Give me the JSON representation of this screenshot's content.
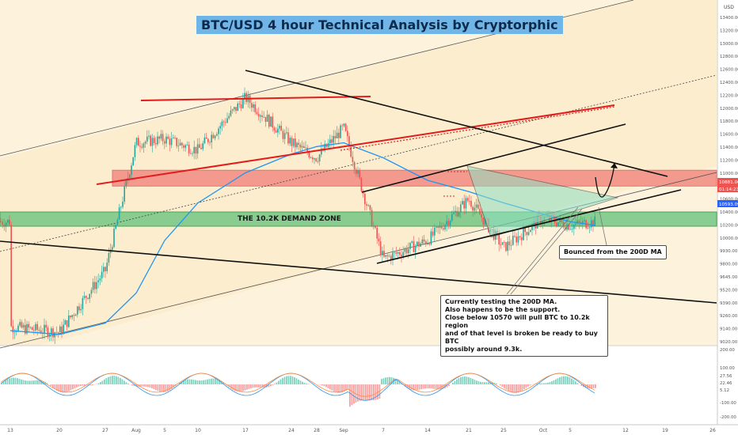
{
  "title": "BTC/USD 4 hour Technical Analysis by Cryptorphic",
  "zones": {
    "demand_label": "THE 10.2K DEMAND ZONE"
  },
  "notes": {
    "main": [
      "Currently testing the 200D MA.",
      "Also happens to be the support.",
      "Close below 10570 will pull BTC to 10.2k region",
      "and of that level is broken be ready to buy BTC",
      "possibly around 9.3k."
    ],
    "bounce": "Bounced from the 200D MA"
  },
  "axis": {
    "currency": "USD",
    "price_ticks": [
      "13400.00",
      "13200.00",
      "13000.00",
      "12800.00",
      "12600.00",
      "12400.00",
      "12200.00",
      "12000.00",
      "11800.00",
      "11600.00",
      "11400.00",
      "11200.00",
      "11000.00",
      "10800.00",
      "10600.00",
      "10400.00",
      "10200.00",
      "10000.00",
      "9930.00",
      "9800.00",
      "9645.00",
      "9520.00",
      "9390.00",
      "9260.00",
      "9140.00",
      "9020.00"
    ],
    "price_tags": [
      {
        "label": "10881.00",
        "color": "#ef5350"
      },
      {
        "label": "01:14:23",
        "color": "#ef5350"
      },
      {
        "label": "10593.09",
        "color": "#2962ff"
      }
    ],
    "macd_ticks": [
      "200.00",
      "100.00",
      "27.56",
      "22.46",
      "5.12",
      "-100.00",
      "-200.00"
    ],
    "time_ticks": [
      "13",
      "20",
      "27",
      "Aug",
      "5",
      "10",
      "17",
      "24",
      "28",
      "Sep",
      "7",
      "14",
      "21",
      "25",
      "Oct",
      "5",
      "12",
      "19",
      "26"
    ]
  },
  "colors": {
    "up": "#26a69a",
    "down": "#ef5350",
    "ma": "#2196f3",
    "resistance_zone": "#f28b82",
    "demand_zone": "#7cc98a",
    "bg": "#fbeccb",
    "triangle": "#8fe0c4"
  },
  "chart_data": {
    "type": "candlestick",
    "title": "BTC/USD 4 hour Technical Analysis by Cryptorphic",
    "xlabel": "",
    "ylabel": "",
    "ylim": [
      9000,
      13600
    ],
    "series": [
      {
        "kind": "close_path",
        "x": [
          "Jul 13",
          "Jul 20",
          "Jul 27",
          "Aug 1",
          "Aug 5",
          "Aug 10",
          "Aug 17",
          "Aug 24",
          "Aug 28",
          "Sep 1",
          "Sep 7",
          "Sep 14",
          "Sep 21",
          "Sep 25",
          "Oct 1",
          "Oct 5",
          "Oct 8"
        ],
        "values": [
          9250,
          9180,
          10000,
          11700,
          11750,
          11600,
          12300,
          11700,
          11500,
          11900,
          10150,
          10400,
          10950,
          10300,
          10700,
          10600,
          10650
        ]
      },
      {
        "kind": "moving_average",
        "x": [
          "Jul 13",
          "Jul 20",
          "Jul 27",
          "Aug 1",
          "Aug 5",
          "Aug 10",
          "Aug 17",
          "Aug 24",
          "Aug 28",
          "Sep 1",
          "Sep 7",
          "Sep 14",
          "Sep 21",
          "Sep 25",
          "Oct 1",
          "Oct 5",
          "Oct 8"
        ],
        "values": [
          9200,
          9150,
          9300,
          9700,
          10400,
          10900,
          11300,
          11550,
          11650,
          11700,
          11500,
          11200,
          11050,
          10900,
          10750,
          10650,
          10600
        ]
      }
    ],
    "zones": [
      {
        "from": 11050,
        "to": 11250
      },
      {
        "from": 10350,
        "to": 10520
      }
    ],
    "macd_ylim": [
      -250,
      250
    ]
  }
}
